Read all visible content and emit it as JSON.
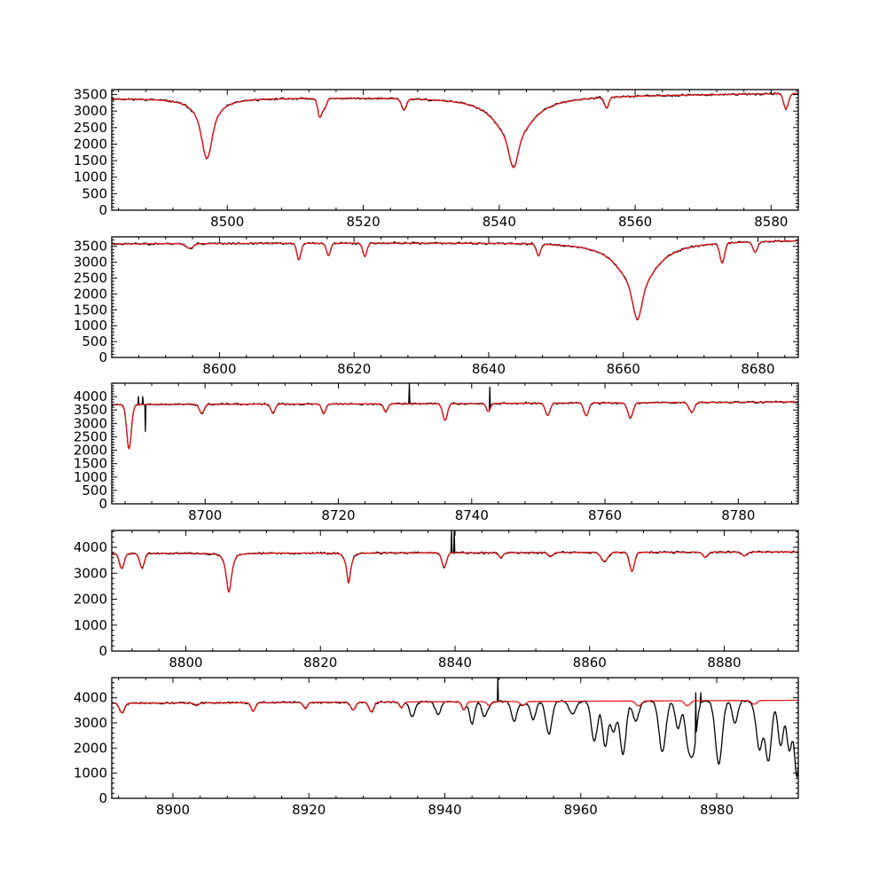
{
  "colors": {
    "observed": "#000000",
    "model": "#e41a1c",
    "background": "#ffffff"
  },
  "chart_data": [
    {
      "type": "line",
      "xlim": [
        8483,
        8584
      ],
      "ylim": [
        0,
        3650
      ],
      "xticks": [
        8500,
        8520,
        8540,
        8560,
        8580
      ],
      "yticks": [
        0,
        500,
        1000,
        1500,
        2000,
        2500,
        3000,
        3500
      ],
      "continuum": [
        [
          8483,
          3380
        ],
        [
          8530,
          3420
        ],
        [
          8584,
          3540
        ]
      ],
      "lines": [
        {
          "c": 8497.0,
          "d": 1820,
          "w": 0.6,
          "l": 1.5
        },
        {
          "c": 8513.6,
          "d": 550,
          "w": 0.3,
          "l": 0
        },
        {
          "c": 8514.3,
          "d": 300,
          "w": 0.3,
          "l": 0
        },
        {
          "c": 8526.0,
          "d": 330,
          "w": 0.35,
          "l": 0
        },
        {
          "c": 8542.1,
          "d": 2150,
          "w": 0.6,
          "l": 3.0
        },
        {
          "c": 8555.8,
          "d": 330,
          "w": 0.3,
          "l": 0
        },
        {
          "c": 8582.2,
          "d": 460,
          "w": 0.35,
          "l": 0
        }
      ],
      "series": [
        {
          "name": "",
          "role": "observed",
          "noise": 45,
          "seed": 11
        },
        {
          "name": "",
          "role": "model"
        }
      ]
    },
    {
      "type": "line",
      "xlim": [
        8584,
        8686
      ],
      "ylim": [
        0,
        3800
      ],
      "xticks": [
        8600,
        8620,
        8640,
        8660,
        8680
      ],
      "yticks": [
        0,
        500,
        1000,
        1500,
        2000,
        2500,
        3000,
        3500
      ],
      "continuum": [
        [
          8584,
          3580
        ],
        [
          8640,
          3620
        ],
        [
          8686,
          3700
        ]
      ],
      "lines": [
        {
          "c": 8595.6,
          "d": 150,
          "w": 0.5,
          "l": 0
        },
        {
          "c": 8611.8,
          "d": 520,
          "w": 0.3,
          "l": 0
        },
        {
          "c": 8616.2,
          "d": 380,
          "w": 0.3,
          "l": 0
        },
        {
          "c": 8621.6,
          "d": 420,
          "w": 0.3,
          "l": 0
        },
        {
          "c": 8647.4,
          "d": 370,
          "w": 0.3,
          "l": 0
        },
        {
          "c": 8662.1,
          "d": 2450,
          "w": 0.6,
          "l": 3.0
        },
        {
          "c": 8674.7,
          "d": 620,
          "w": 0.35,
          "l": 0
        },
        {
          "c": 8679.6,
          "d": 330,
          "w": 0.35,
          "l": 0
        }
      ],
      "series": [
        {
          "name": "",
          "role": "observed",
          "noise": 45,
          "seed": 23
        },
        {
          "name": "",
          "role": "model"
        }
      ]
    },
    {
      "type": "line",
      "xlim": [
        8686,
        8789
      ],
      "ylim": [
        0,
        4500
      ],
      "xticks": [
        8700,
        8720,
        8740,
        8760,
        8780
      ],
      "yticks": [
        0,
        500,
        1000,
        1500,
        2000,
        2500,
        3000,
        3500,
        4000
      ],
      "continuum": [
        [
          8686,
          3700
        ],
        [
          8740,
          3740
        ],
        [
          8789,
          3800
        ]
      ],
      "lines": [
        {
          "c": 8688.6,
          "d": 1650,
          "w": 0.35,
          "l": 0
        },
        {
          "c": 8699.5,
          "d": 330,
          "w": 0.35,
          "l": 0
        },
        {
          "c": 8710.2,
          "d": 350,
          "w": 0.3,
          "l": 0
        },
        {
          "c": 8717.8,
          "d": 350,
          "w": 0.3,
          "l": 0
        },
        {
          "c": 8727.1,
          "d": 300,
          "w": 0.3,
          "l": 0
        },
        {
          "c": 8736.0,
          "d": 620,
          "w": 0.35,
          "l": 0
        },
        {
          "c": 8742.5,
          "d": 300,
          "w": 0.3,
          "l": 0
        },
        {
          "c": 8751.4,
          "d": 450,
          "w": 0.35,
          "l": 0
        },
        {
          "c": 8757.2,
          "d": 480,
          "w": 0.35,
          "l": 0
        },
        {
          "c": 8763.8,
          "d": 550,
          "w": 0.4,
          "l": 0
        },
        {
          "c": 8773.0,
          "d": 360,
          "w": 0.4,
          "l": 0
        }
      ],
      "spikes": [
        [
          8690.0,
          4000
        ],
        [
          8690.6,
          4000
        ],
        [
          8691.0,
          2700
        ],
        [
          8730.6,
          4500
        ],
        [
          8742.7,
          4350
        ]
      ],
      "series": [
        {
          "name": "",
          "role": "observed",
          "noise": 50,
          "seed": 37
        },
        {
          "name": "",
          "role": "model"
        }
      ]
    },
    {
      "type": "line",
      "xlim": [
        8789,
        8891
      ],
      "ylim": [
        0,
        4650
      ],
      "xticks": [
        8800,
        8820,
        8840,
        8860,
        8880
      ],
      "yticks": [
        0,
        1000,
        2000,
        3000,
        4000
      ],
      "continuum": [
        [
          8789,
          3760
        ],
        [
          8840,
          3790
        ],
        [
          8891,
          3820
        ]
      ],
      "lines": [
        {
          "c": 8790.5,
          "d": 570,
          "w": 0.35,
          "l": 0
        },
        {
          "c": 8793.5,
          "d": 560,
          "w": 0.35,
          "l": 0
        },
        {
          "c": 8806.4,
          "d": 1500,
          "w": 0.5,
          "l": 0.4
        },
        {
          "c": 8824.2,
          "d": 1150,
          "w": 0.45,
          "l": 0.3
        },
        {
          "c": 8838.4,
          "d": 550,
          "w": 0.35,
          "l": 0
        },
        {
          "c": 8846.8,
          "d": 180,
          "w": 0.35,
          "l": 0
        },
        {
          "c": 8854.2,
          "d": 150,
          "w": 0.35,
          "l": 0
        },
        {
          "c": 8862.2,
          "d": 340,
          "w": 0.5,
          "l": 0
        },
        {
          "c": 8866.3,
          "d": 730,
          "w": 0.35,
          "l": 0
        },
        {
          "c": 8877.2,
          "d": 200,
          "w": 0.35,
          "l": 0
        },
        {
          "c": 8883.0,
          "d": 150,
          "w": 0.35,
          "l": 0
        }
      ],
      "spikes": [
        [
          8839.5,
          4650
        ],
        [
          8839.9,
          4650
        ]
      ],
      "series": [
        {
          "name": "",
          "role": "observed",
          "noise": 55,
          "seed": 53
        },
        {
          "name": "",
          "role": "model"
        }
      ]
    },
    {
      "type": "line",
      "xlim": [
        8891,
        8992
      ],
      "ylim": [
        0,
        4800
      ],
      "xticks": [
        8900,
        8920,
        8940,
        8960,
        8980
      ],
      "yticks": [
        0,
        1000,
        2000,
        3000,
        4000
      ],
      "continuum": [
        [
          8891,
          3780
        ],
        [
          8940,
          3840
        ],
        [
          8992,
          3900
        ]
      ],
      "lines": [
        {
          "c": 8892.5,
          "d": 380,
          "w": 0.35,
          "l": 0
        },
        {
          "c": 8903.5,
          "d": 100,
          "w": 0.35,
          "l": 0
        },
        {
          "c": 8911.8,
          "d": 350,
          "w": 0.3,
          "l": 0
        },
        {
          "c": 8919.5,
          "d": 250,
          "w": 0.3,
          "l": 0
        },
        {
          "c": 8926.5,
          "d": 300,
          "w": 0.35,
          "l": 0
        },
        {
          "c": 8929.2,
          "d": 380,
          "w": 0.35,
          "l": 0
        },
        {
          "c": 8933.6,
          "d": 220,
          "w": 0.3,
          "l": 0
        },
        {
          "c": 8942.8,
          "d": 320,
          "w": 0.3,
          "l": 0
        },
        {
          "c": 8946.5,
          "d": 150,
          "w": 0.3,
          "l": 0
        },
        {
          "c": 8951.5,
          "d": 150,
          "w": 0.4,
          "l": 0
        },
        {
          "c": 8968.5,
          "d": 200,
          "w": 0.4,
          "l": 0
        },
        {
          "c": 8975.7,
          "d": 200,
          "w": 0.4,
          "l": 0
        },
        {
          "c": 8985.5,
          "d": 150,
          "w": 0.4,
          "l": 0
        }
      ],
      "telluric": [
        {
          "c": 8935.2,
          "d": 600,
          "w": 0.4
        },
        {
          "c": 8939.0,
          "d": 500,
          "w": 0.4
        },
        {
          "c": 8944.0,
          "d": 900,
          "w": 0.35
        },
        {
          "c": 8945.8,
          "d": 600,
          "w": 0.35
        },
        {
          "c": 8950.2,
          "d": 800,
          "w": 0.4
        },
        {
          "c": 8953.0,
          "d": 700,
          "w": 0.4
        },
        {
          "c": 8955.3,
          "d": 1300,
          "w": 0.45
        },
        {
          "c": 8958.8,
          "d": 500,
          "w": 0.5
        },
        {
          "c": 8962.0,
          "d": 1600,
          "w": 0.45
        },
        {
          "c": 8963.6,
          "d": 1800,
          "w": 0.4
        },
        {
          "c": 8964.8,
          "d": 1200,
          "w": 0.4
        },
        {
          "c": 8966.2,
          "d": 2100,
          "w": 0.45
        },
        {
          "c": 8968.0,
          "d": 700,
          "w": 0.4
        },
        {
          "c": 8972.0,
          "d": 2000,
          "w": 0.5
        },
        {
          "c": 8974.3,
          "d": 1100,
          "w": 0.4
        },
        {
          "c": 8975.8,
          "d": 1400,
          "w": 0.45
        },
        {
          "c": 8976.6,
          "d": 1800,
          "w": 0.45
        },
        {
          "c": 8980.3,
          "d": 2500,
          "w": 0.5
        },
        {
          "c": 8982.7,
          "d": 900,
          "w": 0.4
        },
        {
          "c": 8986.3,
          "d": 1900,
          "w": 0.45
        },
        {
          "c": 8987.6,
          "d": 2400,
          "w": 0.45
        },
        {
          "c": 8989.4,
          "d": 1800,
          "w": 0.4
        },
        {
          "c": 8990.7,
          "d": 2000,
          "w": 0.4
        },
        {
          "c": 8991.8,
          "d": 3000,
          "w": 0.35
        }
      ],
      "spikes": [
        [
          8947.8,
          4800
        ],
        [
          8976.9,
          4200
        ],
        [
          8977.6,
          4200
        ]
      ],
      "series": [
        {
          "name": "",
          "role": "observed",
          "noise": 55,
          "seed": 71
        },
        {
          "name": "",
          "role": "model"
        }
      ]
    }
  ]
}
